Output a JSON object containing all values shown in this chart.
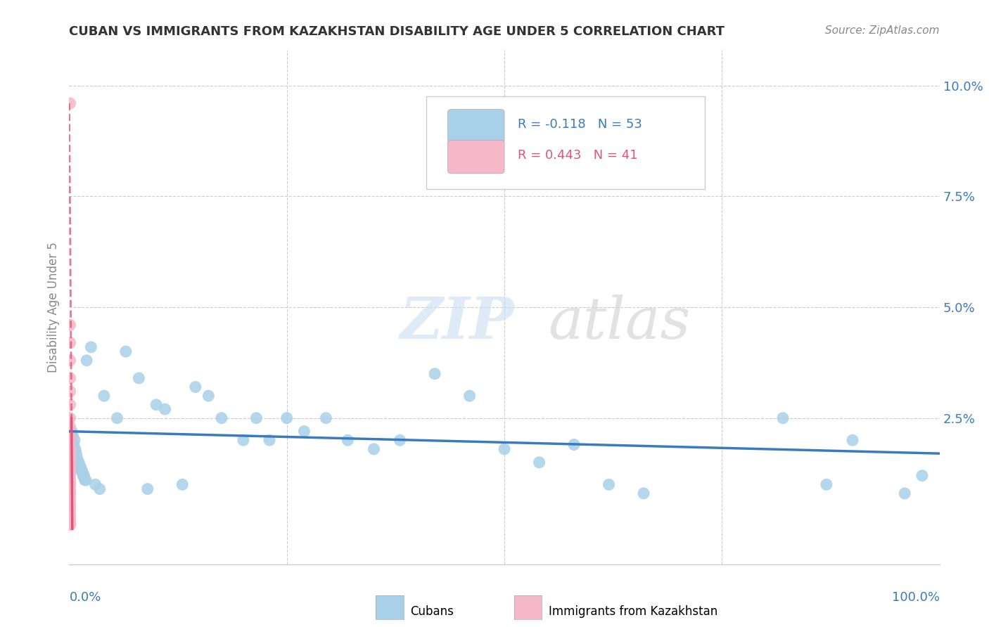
{
  "title": "CUBAN VS IMMIGRANTS FROM KAZAKHSTAN DISABILITY AGE UNDER 5 CORRELATION CHART",
  "source": "Source: ZipAtlas.com",
  "ylabel": "Disability Age Under 5",
  "legend_cubans": "Cubans",
  "legend_kazakhstan": "Immigrants from Kazakhstan",
  "cubans_R": "R = -0.118",
  "cubans_N": "N = 53",
  "kazakhstan_R": "R = 0.443",
  "kazakhstan_N": "N = 41",
  "cubans_color": "#a8d0e8",
  "kazakhstan_color": "#f5b8c8",
  "cubans_line_color": "#3a7bbf",
  "kazakhstan_line_color": "#e05575",
  "watermark_zip": "ZIP",
  "watermark_atlas": "atlas",
  "cubans_x": [
    0.003,
    0.004,
    0.005,
    0.006,
    0.007,
    0.008,
    0.009,
    0.01,
    0.011,
    0.012,
    0.013,
    0.014,
    0.015,
    0.016,
    0.017,
    0.018,
    0.019,
    0.02,
    0.025,
    0.03,
    0.035,
    0.04,
    0.055,
    0.065,
    0.08,
    0.09,
    0.1,
    0.11,
    0.13,
    0.145,
    0.16,
    0.175,
    0.2,
    0.215,
    0.23,
    0.25,
    0.27,
    0.295,
    0.32,
    0.35,
    0.38,
    0.42,
    0.46,
    0.5,
    0.54,
    0.58,
    0.62,
    0.66,
    0.82,
    0.87,
    0.9,
    0.96,
    0.98
  ],
  "cubans_y": [
    0.022,
    0.021,
    0.019,
    0.02,
    0.018,
    0.017,
    0.016,
    0.015,
    0.015,
    0.014,
    0.014,
    0.013,
    0.013,
    0.012,
    0.012,
    0.011,
    0.011,
    0.038,
    0.041,
    0.01,
    0.009,
    0.03,
    0.025,
    0.04,
    0.034,
    0.009,
    0.028,
    0.027,
    0.01,
    0.032,
    0.03,
    0.025,
    0.02,
    0.025,
    0.02,
    0.025,
    0.022,
    0.025,
    0.02,
    0.018,
    0.02,
    0.035,
    0.03,
    0.018,
    0.015,
    0.019,
    0.01,
    0.008,
    0.025,
    0.01,
    0.02,
    0.008,
    0.012
  ],
  "kazakhstan_x": [
    0.001,
    0.001,
    0.001,
    0.001,
    0.001,
    0.001,
    0.001,
    0.001,
    0.001,
    0.001,
    0.001,
    0.001,
    0.001,
    0.001,
    0.001,
    0.001,
    0.001,
    0.001,
    0.001,
    0.001,
    0.001,
    0.001,
    0.001,
    0.001,
    0.001,
    0.001,
    0.001,
    0.001,
    0.001,
    0.001,
    0.001,
    0.001,
    0.001,
    0.001,
    0.001,
    0.001,
    0.001,
    0.001,
    0.001,
    0.001,
    0.001
  ],
  "kazakhstan_y": [
    0.096,
    0.046,
    0.042,
    0.038,
    0.034,
    0.031,
    0.028,
    0.025,
    0.023,
    0.022,
    0.02,
    0.018,
    0.017,
    0.016,
    0.015,
    0.014,
    0.013,
    0.012,
    0.011,
    0.01,
    0.009,
    0.008,
    0.007,
    0.006,
    0.005,
    0.004,
    0.003,
    0.002,
    0.001,
    0.001,
    0.02,
    0.018,
    0.015,
    0.013,
    0.01,
    0.008,
    0.005,
    0.003,
    0.001,
    0.001,
    0.001
  ],
  "ytick_vals": [
    0.0,
    0.025,
    0.05,
    0.075,
    0.1
  ],
  "ytick_labels": [
    "",
    "2.5%",
    "5.0%",
    "7.5%",
    "10.0%"
  ],
  "xlim": [
    0.0,
    1.0
  ],
  "ylim": [
    -0.008,
    0.108
  ]
}
